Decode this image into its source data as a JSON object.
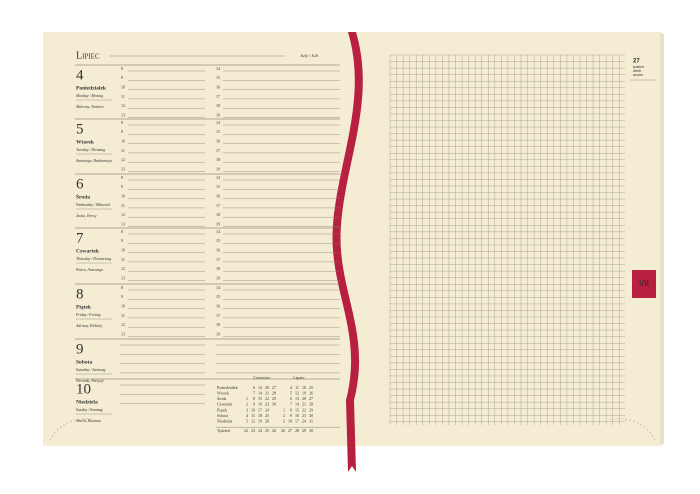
{
  "header": {
    "month": "Lipiec",
    "month_translation": "July / Juli"
  },
  "days": [
    {
      "number": "4",
      "name": "Poniedziałek",
      "translation": "Monday / Montag",
      "name_days": "Malwiny, Teodora",
      "hours_left": [
        8,
        9,
        10,
        11,
        12,
        13
      ],
      "hours_right": [
        14,
        15,
        16,
        17,
        18,
        19
      ]
    },
    {
      "number": "5",
      "name": "Wtorek",
      "translation": "Tuesday / Dienstag",
      "name_days": "Antoniego, Bartłomieja",
      "hours_left": [
        8,
        9,
        10,
        11,
        12,
        13
      ],
      "hours_right": [
        14,
        15,
        16,
        17,
        18,
        19
      ]
    },
    {
      "number": "6",
      "name": "Środa",
      "translation": "Wednesday / Mittwoch",
      "name_days": "Jacka, Teresy",
      "hours_left": [
        8,
        9,
        10,
        11,
        12,
        13
      ],
      "hours_right": [
        14,
        15,
        16,
        17,
        18,
        19
      ]
    },
    {
      "number": "7",
      "name": "Czwartek",
      "translation": "Thursday / Donnerstag",
      "name_days": "Piotra, Antoniego",
      "hours_left": [
        8,
        9,
        10,
        11,
        12,
        13
      ],
      "hours_right": [
        14,
        15,
        16,
        17,
        18,
        19
      ]
    },
    {
      "number": "8",
      "name": "Piątek",
      "translation": "Friday / Freitag",
      "name_days": "Adriany, Elżbiety",
      "hours_left": [
        8,
        9,
        10,
        11,
        12,
        13
      ],
      "hours_right": [
        14,
        15,
        16,
        17,
        18,
        19
      ]
    },
    {
      "number": "9",
      "name": "Sobota",
      "translation": "Saturday / Samstag",
      "name_days": "Weroniki, Patrycji"
    },
    {
      "number": "10",
      "name": "Niedziela",
      "translation": "Sunday / Sonntag",
      "name_days": "Amelii, Ruszana"
    }
  ],
  "mini_calendar": {
    "weekdays": [
      "Poniedziałek",
      "Wtorek",
      "Środa",
      "Czwartek",
      "Piątek",
      "Sobota",
      "Niedziela"
    ],
    "week_label": "Tydzień",
    "months": [
      {
        "name": "Czerwiec",
        "rows": [
          [
            null,
            6,
            13,
            20,
            27
          ],
          [
            null,
            7,
            14,
            21,
            28
          ],
          [
            1,
            8,
            15,
            22,
            29
          ],
          [
            2,
            9,
            16,
            23,
            30
          ],
          [
            3,
            10,
            17,
            24,
            null
          ],
          [
            4,
            11,
            18,
            25,
            null
          ],
          [
            5,
            12,
            19,
            26,
            null
          ]
        ],
        "weeks": [
          22,
          23,
          24,
          25,
          26
        ]
      },
      {
        "name": "Lipiec",
        "rows": [
          [
            null,
            4,
            11,
            18,
            25
          ],
          [
            null,
            5,
            12,
            19,
            26
          ],
          [
            null,
            6,
            13,
            20,
            27
          ],
          [
            null,
            7,
            14,
            21,
            28
          ],
          [
            1,
            8,
            15,
            22,
            29
          ],
          [
            2,
            9,
            16,
            23,
            30
          ],
          [
            3,
            10,
            17,
            24,
            31
          ]
        ],
        "weeks": [
          26,
          27,
          28,
          29,
          30
        ]
      }
    ]
  },
  "right_page": {
    "week_number": "27",
    "week_labels": [
      "tydzień",
      "week",
      "woche"
    ],
    "tab": "VII"
  }
}
